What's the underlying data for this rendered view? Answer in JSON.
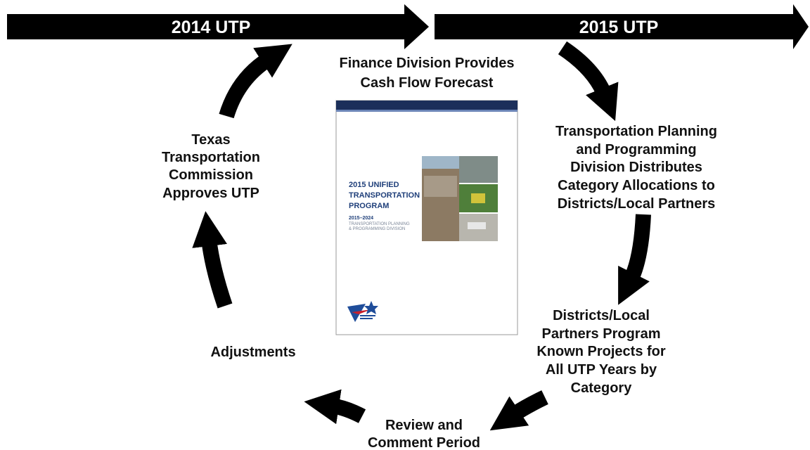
{
  "banners": [
    {
      "label": "2014 UTP"
    },
    {
      "label": "2015 UTP"
    }
  ],
  "nodes": [
    {
      "lines": [
        "Finance Division Provides",
        "Cash Flow Forecast"
      ]
    },
    {
      "lines": [
        "Transportation Planning",
        "and Programming",
        "Division Distributes",
        "Category Allocations to",
        "Districts/Local Partners"
      ]
    },
    {
      "lines": [
        "Districts/Local",
        "Partners Program",
        "Known Projects for",
        "All UTP Years by",
        "Category"
      ]
    },
    {
      "lines": [
        "Review and",
        "Comment Period"
      ]
    },
    {
      "lines": [
        "Adjustments"
      ]
    },
    {
      "lines": [
        "Texas",
        "Transportation",
        "Commission",
        "Approves UTP"
      ]
    }
  ],
  "cover": {
    "title_lines": [
      "2015 UNIFIED",
      "TRANSPORTATION",
      "PROGRAM"
    ],
    "years": "2015–2024",
    "division_lines": [
      "TRANSPORTATION PLANNING",
      "& PROGRAMMING DIVISION"
    ]
  }
}
